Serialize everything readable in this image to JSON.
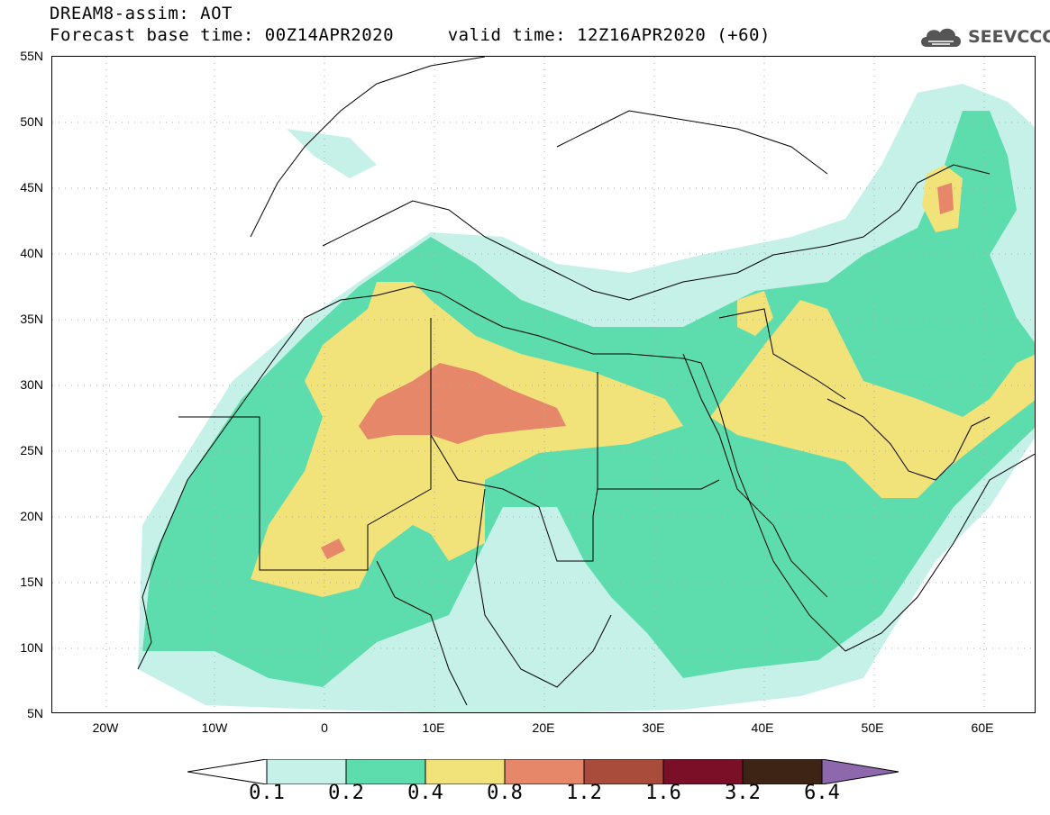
{
  "header": {
    "line1": "DREAM8-assim: AOT",
    "line2": "Forecast base time: 00Z14APR2020     valid time: 12Z16APR2020 (+60)"
  },
  "logo": {
    "text": "SEEVCCC",
    "icon": "cloud-icon"
  },
  "axes": {
    "lat_labels": [
      "55N",
      "50N",
      "45N",
      "40N",
      "35N",
      "30N",
      "25N",
      "20N",
      "15N",
      "10N",
      "5N"
    ],
    "lon_labels": [
      "20W",
      "10W",
      "0",
      "10E",
      "20E",
      "30E",
      "40E",
      "50E",
      "60E"
    ]
  },
  "legend": {
    "labels": [
      "0.1",
      "0.2",
      "0.4",
      "0.8",
      "1.2",
      "1.6",
      "3.2",
      "6.4"
    ],
    "colors": [
      "#ffffff",
      "#c6f1e9",
      "#5ddcad",
      "#f1e27a",
      "#e6876a",
      "#a94c3c",
      "#7b0f27",
      "#3e2414",
      "#8e68ad"
    ]
  },
  "colors": {
    "c01": "#c6f1e9",
    "c02": "#5ddcad",
    "c04": "#f1e27a",
    "c08": "#e6876a"
  }
}
